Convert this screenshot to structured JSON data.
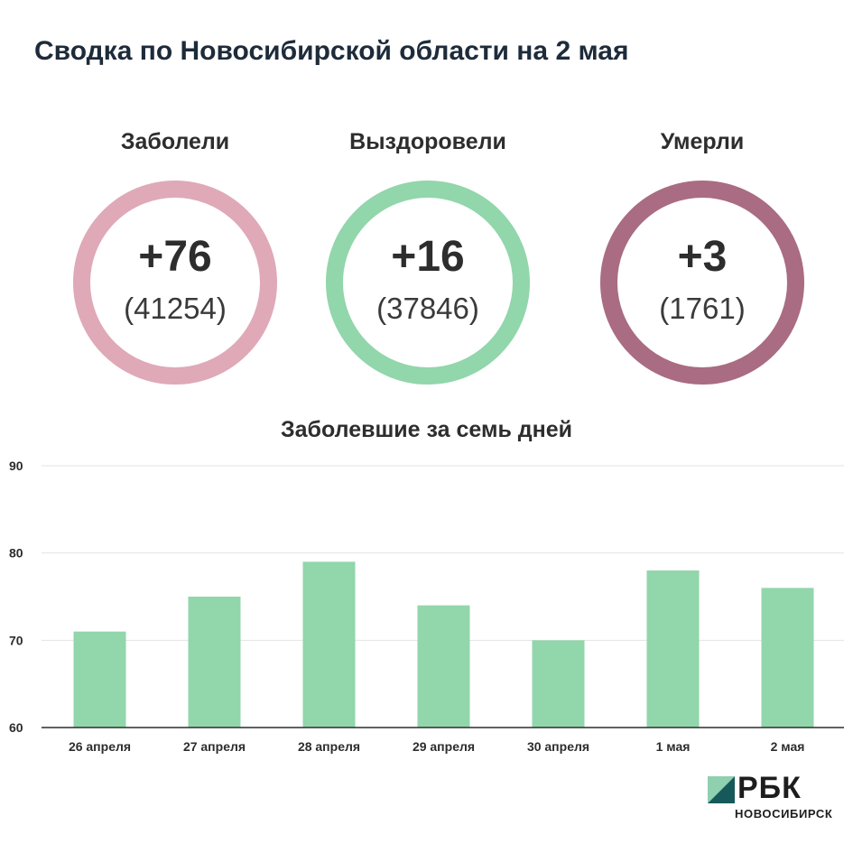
{
  "header": {
    "title": "Сводка по Новосибирской области на 2 мая"
  },
  "stats": [
    {
      "label": "Заболели",
      "delta": "+76",
      "total": "(41254)",
      "color": "#dfa9b8"
    },
    {
      "label": "Выздоровели",
      "delta": "+16",
      "total": "(37846)",
      "color": "#92d6ab"
    },
    {
      "label": "Умерли",
      "delta": "+3",
      "total": "(1761)",
      "color": "#a96c82"
    }
  ],
  "chart_data": {
    "type": "bar",
    "title": "Заболевшие за семь дней",
    "categories": [
      "26 апреля",
      "27 апреля",
      "28 апреля",
      "29 апреля",
      "30 апреля",
      "1 мая",
      "2 мая"
    ],
    "values": [
      71,
      75,
      79,
      74,
      70,
      78,
      76
    ],
    "ylim": [
      60,
      90
    ],
    "yticks": [
      60,
      70,
      80,
      90
    ],
    "grid": true,
    "bar_color": "#92d6ab"
  },
  "brand": {
    "name": "РБК",
    "sub": "НОВОСИБИРСК",
    "mark_light": "#8ed0b0",
    "mark_dark": "#17595b"
  }
}
